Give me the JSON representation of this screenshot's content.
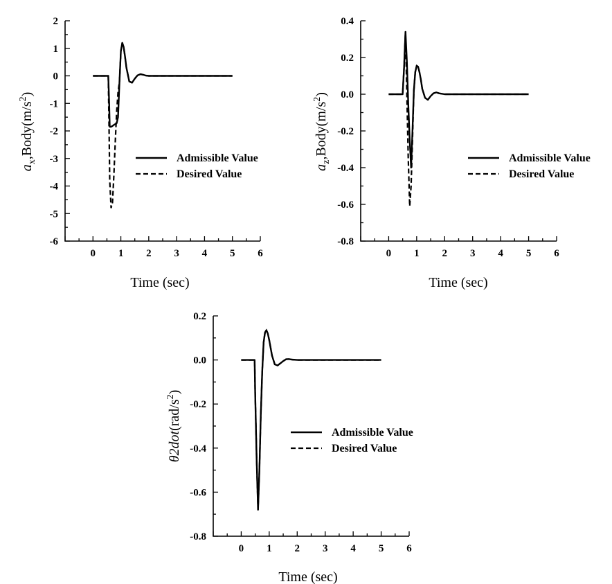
{
  "chart_data": [
    {
      "id": "ax",
      "type": "line",
      "xlabel": "Time (sec)",
      "ylabel_main": "a",
      "ylabel_sub": "x",
      "ylabel_rest": ",Body(m/s",
      "ylabel_sup": "2",
      "ylabel_end": ")",
      "xlim": [
        -1,
        6
      ],
      "ylim": [
        -6,
        2
      ],
      "xticks": [
        0,
        1,
        2,
        3,
        4,
        5,
        6
      ],
      "xtick_labels": [
        "0",
        "1",
        "2",
        "3",
        "4",
        "5",
        "6"
      ],
      "yticks": [
        -6,
        -5,
        -4,
        -3,
        -2,
        -1,
        0,
        1,
        2
      ],
      "ytick_labels": [
        "-6",
        "-5",
        "-4",
        "-3",
        "-2",
        "-1",
        "0",
        "1",
        "2"
      ],
      "legend": [
        "Admissible Value",
        "Desired Value"
      ],
      "legend_position": "right",
      "series": [
        {
          "name": "Admissible Value",
          "style": "solid",
          "x": [
            0,
            0.55,
            0.58,
            0.6,
            0.65,
            0.7,
            0.75,
            0.8,
            0.85,
            0.9,
            0.95,
            1.0,
            1.05,
            1.1,
            1.15,
            1.2,
            1.3,
            1.4,
            1.5,
            1.6,
            1.7,
            1.8,
            1.9,
            2.0,
            2.2,
            2.5,
            3,
            4,
            5
          ],
          "y": [
            0,
            0,
            -1.0,
            -1.85,
            -1.85,
            -1.82,
            -1.78,
            -1.75,
            -1.72,
            -1.5,
            -0.2,
            0.9,
            1.2,
            1.05,
            0.7,
            0.3,
            -0.2,
            -0.25,
            -0.1,
            0.02,
            0.06,
            0.04,
            0.01,
            0,
            0,
            0,
            0,
            0,
            0
          ]
        },
        {
          "name": "Desired Value",
          "style": "dashed",
          "x": [
            0,
            0.55,
            0.58,
            0.6,
            0.65,
            0.7,
            0.75,
            0.8,
            0.85,
            0.9,
            0.95,
            1.0,
            1.05,
            1.1,
            1.15,
            1.2,
            1.3,
            1.4,
            1.5,
            1.6,
            1.7,
            1.8,
            1.9,
            2.0,
            2.2,
            2.5,
            3,
            4,
            5
          ],
          "y": [
            0,
            0,
            -2.2,
            -3.8,
            -4.8,
            -4.6,
            -3.6,
            -2.4,
            -1.3,
            -0.6,
            -0.2,
            0.9,
            1.2,
            1.05,
            0.7,
            0.3,
            -0.2,
            -0.25,
            -0.1,
            0.02,
            0.06,
            0.04,
            0.01,
            0,
            0,
            0,
            0,
            0,
            0
          ]
        }
      ]
    },
    {
      "id": "az",
      "type": "line",
      "xlabel": "Time (sec)",
      "ylabel_main": "a",
      "ylabel_sub": "z",
      "ylabel_rest": ",Body(m/s",
      "ylabel_sup": "2",
      "ylabel_end": ")",
      "xlim": [
        -1,
        6
      ],
      "ylim": [
        -0.8,
        0.4
      ],
      "xticks": [
        0,
        1,
        2,
        3,
        4,
        5,
        6
      ],
      "xtick_labels": [
        "0",
        "1",
        "2",
        "3",
        "4",
        "5",
        "6"
      ],
      "yticks": [
        -0.8,
        -0.6,
        -0.4,
        -0.2,
        0.0,
        0.2,
        0.4
      ],
      "ytick_labels": [
        "-0.8",
        "-0.6",
        "-0.4",
        "-0.2",
        "0.0",
        "0.2",
        "0.4"
      ],
      "legend": [
        "Admissible Value",
        "Desired Value"
      ],
      "legend_position": "right",
      "series": [
        {
          "name": "Admissible Value",
          "style": "solid",
          "x": [
            0,
            0.5,
            0.55,
            0.6,
            0.65,
            0.7,
            0.75,
            0.8,
            0.85,
            0.9,
            0.95,
            1.0,
            1.05,
            1.1,
            1.15,
            1.2,
            1.3,
            1.4,
            1.5,
            1.6,
            1.7,
            1.8,
            2.0,
            2.5,
            3,
            4,
            5
          ],
          "y": [
            0,
            0,
            0.15,
            0.34,
            0.18,
            -0.05,
            -0.25,
            -0.4,
            -0.2,
            0.02,
            0.12,
            0.155,
            0.15,
            0.12,
            0.08,
            0.03,
            -0.02,
            -0.03,
            -0.01,
            0.005,
            0.01,
            0.005,
            0,
            0,
            0,
            0,
            0
          ]
        },
        {
          "name": "Desired Value",
          "style": "dashed",
          "x": [
            0,
            0.5,
            0.55,
            0.6,
            0.65,
            0.7,
            0.75,
            0.8,
            0.85,
            0.9,
            0.95,
            1.0,
            1.05,
            1.1,
            1.15,
            1.2,
            1.3,
            1.4,
            1.5,
            1.6,
            1.7,
            1.8,
            2.0,
            2.5,
            3,
            4,
            5
          ],
          "y": [
            0,
            0,
            0.15,
            0.34,
            0.0,
            -0.35,
            -0.61,
            -0.5,
            -0.25,
            0.02,
            0.12,
            0.155,
            0.15,
            0.12,
            0.08,
            0.03,
            -0.02,
            -0.03,
            -0.01,
            0.005,
            0.01,
            0.005,
            0,
            0,
            0,
            0,
            0
          ]
        }
      ]
    },
    {
      "id": "theta",
      "type": "line",
      "xlabel": "Time (sec)",
      "ylabel_main": "θ2dot",
      "ylabel_sub": "",
      "ylabel_rest": "(rad/s",
      "ylabel_sup": "2",
      "ylabel_end": ")",
      "xlim": [
        -1,
        6
      ],
      "ylim": [
        -0.8,
        0.2
      ],
      "xticks": [
        0,
        1,
        2,
        3,
        4,
        5,
        6
      ],
      "xtick_labels": [
        "0",
        "1",
        "2",
        "3",
        "4",
        "5",
        "6"
      ],
      "yticks": [
        -0.8,
        -0.6,
        -0.4,
        -0.2,
        0.0,
        0.2
      ],
      "ytick_labels": [
        "-0.8",
        "-0.6",
        "-0.4",
        "-0.2",
        "0.0",
        "0.2"
      ],
      "legend": [
        "Admissible Value",
        "Desired Value"
      ],
      "legend_position": "right",
      "series": [
        {
          "name": "Admissible Value",
          "style": "solid",
          "x": [
            0,
            0.48,
            0.5,
            0.55,
            0.6,
            0.65,
            0.7,
            0.75,
            0.8,
            0.85,
            0.9,
            0.95,
            1.0,
            1.1,
            1.2,
            1.3,
            1.4,
            1.5,
            1.6,
            1.7,
            1.8,
            2.0,
            2.5,
            3,
            4,
            5
          ],
          "y": [
            0,
            0,
            -0.15,
            -0.45,
            -0.68,
            -0.5,
            -0.25,
            -0.05,
            0.08,
            0.125,
            0.135,
            0.12,
            0.09,
            0.02,
            -0.02,
            -0.025,
            -0.015,
            -0.005,
            0.003,
            0.004,
            0.002,
            0,
            0,
            0,
            0,
            0
          ]
        },
        {
          "name": "Desired Value",
          "style": "dashed",
          "x": [
            0,
            0.48,
            0.5,
            0.55,
            0.6,
            0.65,
            0.7,
            0.75,
            0.8,
            0.85,
            0.9,
            0.95,
            1.0,
            1.1,
            1.2,
            1.3,
            1.4,
            1.5,
            1.6,
            1.7,
            1.8,
            2.0,
            2.5,
            3,
            4,
            5
          ],
          "y": [
            0,
            0,
            -0.15,
            -0.45,
            -0.68,
            -0.5,
            -0.25,
            -0.05,
            0.08,
            0.125,
            0.135,
            0.12,
            0.09,
            0.02,
            -0.02,
            -0.025,
            -0.015,
            -0.005,
            0.003,
            0.004,
            0.002,
            0,
            0,
            0,
            0,
            0
          ]
        }
      ]
    }
  ]
}
